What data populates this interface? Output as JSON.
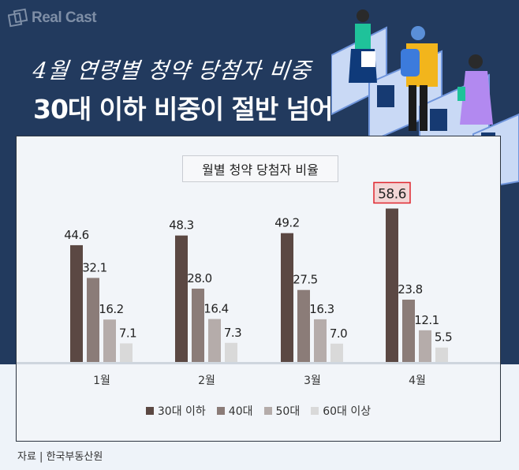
{
  "brand": "Real Cast",
  "header": {
    "subtitle": "4월 연령별 청약 당첨자 비중",
    "title": "30대 이하 비중이 절반 넘어"
  },
  "source": "자료 | 한국부동산원",
  "chart_data": {
    "type": "bar",
    "title": "월별 청약 당첨자 비율",
    "categories": [
      "1월",
      "2월",
      "3월",
      "4월"
    ],
    "series": [
      {
        "name": "30대 이하",
        "color": "#5b4843",
        "values": [
          44.6,
          48.3,
          49.2,
          58.6
        ]
      },
      {
        "name": "40대",
        "color": "#8b7c78",
        "values": [
          32.1,
          28.0,
          27.5,
          23.8
        ]
      },
      {
        "name": "50대",
        "color": "#b5acaa",
        "values": [
          16.2,
          16.4,
          16.3,
          12.1
        ]
      },
      {
        "name": "60대 이상",
        "color": "#d9d9d9",
        "values": [
          7.1,
          7.3,
          7.0,
          5.5
        ]
      }
    ],
    "value_labels": [
      [
        "44.6",
        "32.1",
        "16.2",
        "7.1"
      ],
      [
        "48.3",
        "28.0",
        "16.4",
        "7.3"
      ],
      [
        "49.2",
        "27.5",
        "16.3",
        "7.0"
      ],
      [
        "58.6",
        "23.8",
        "12.1",
        "5.5"
      ]
    ],
    "highlight": {
      "category": "4월",
      "series": "30대 이하",
      "color": "#e0262f"
    },
    "ylim": [
      0,
      65
    ],
    "legend": "bottom"
  }
}
